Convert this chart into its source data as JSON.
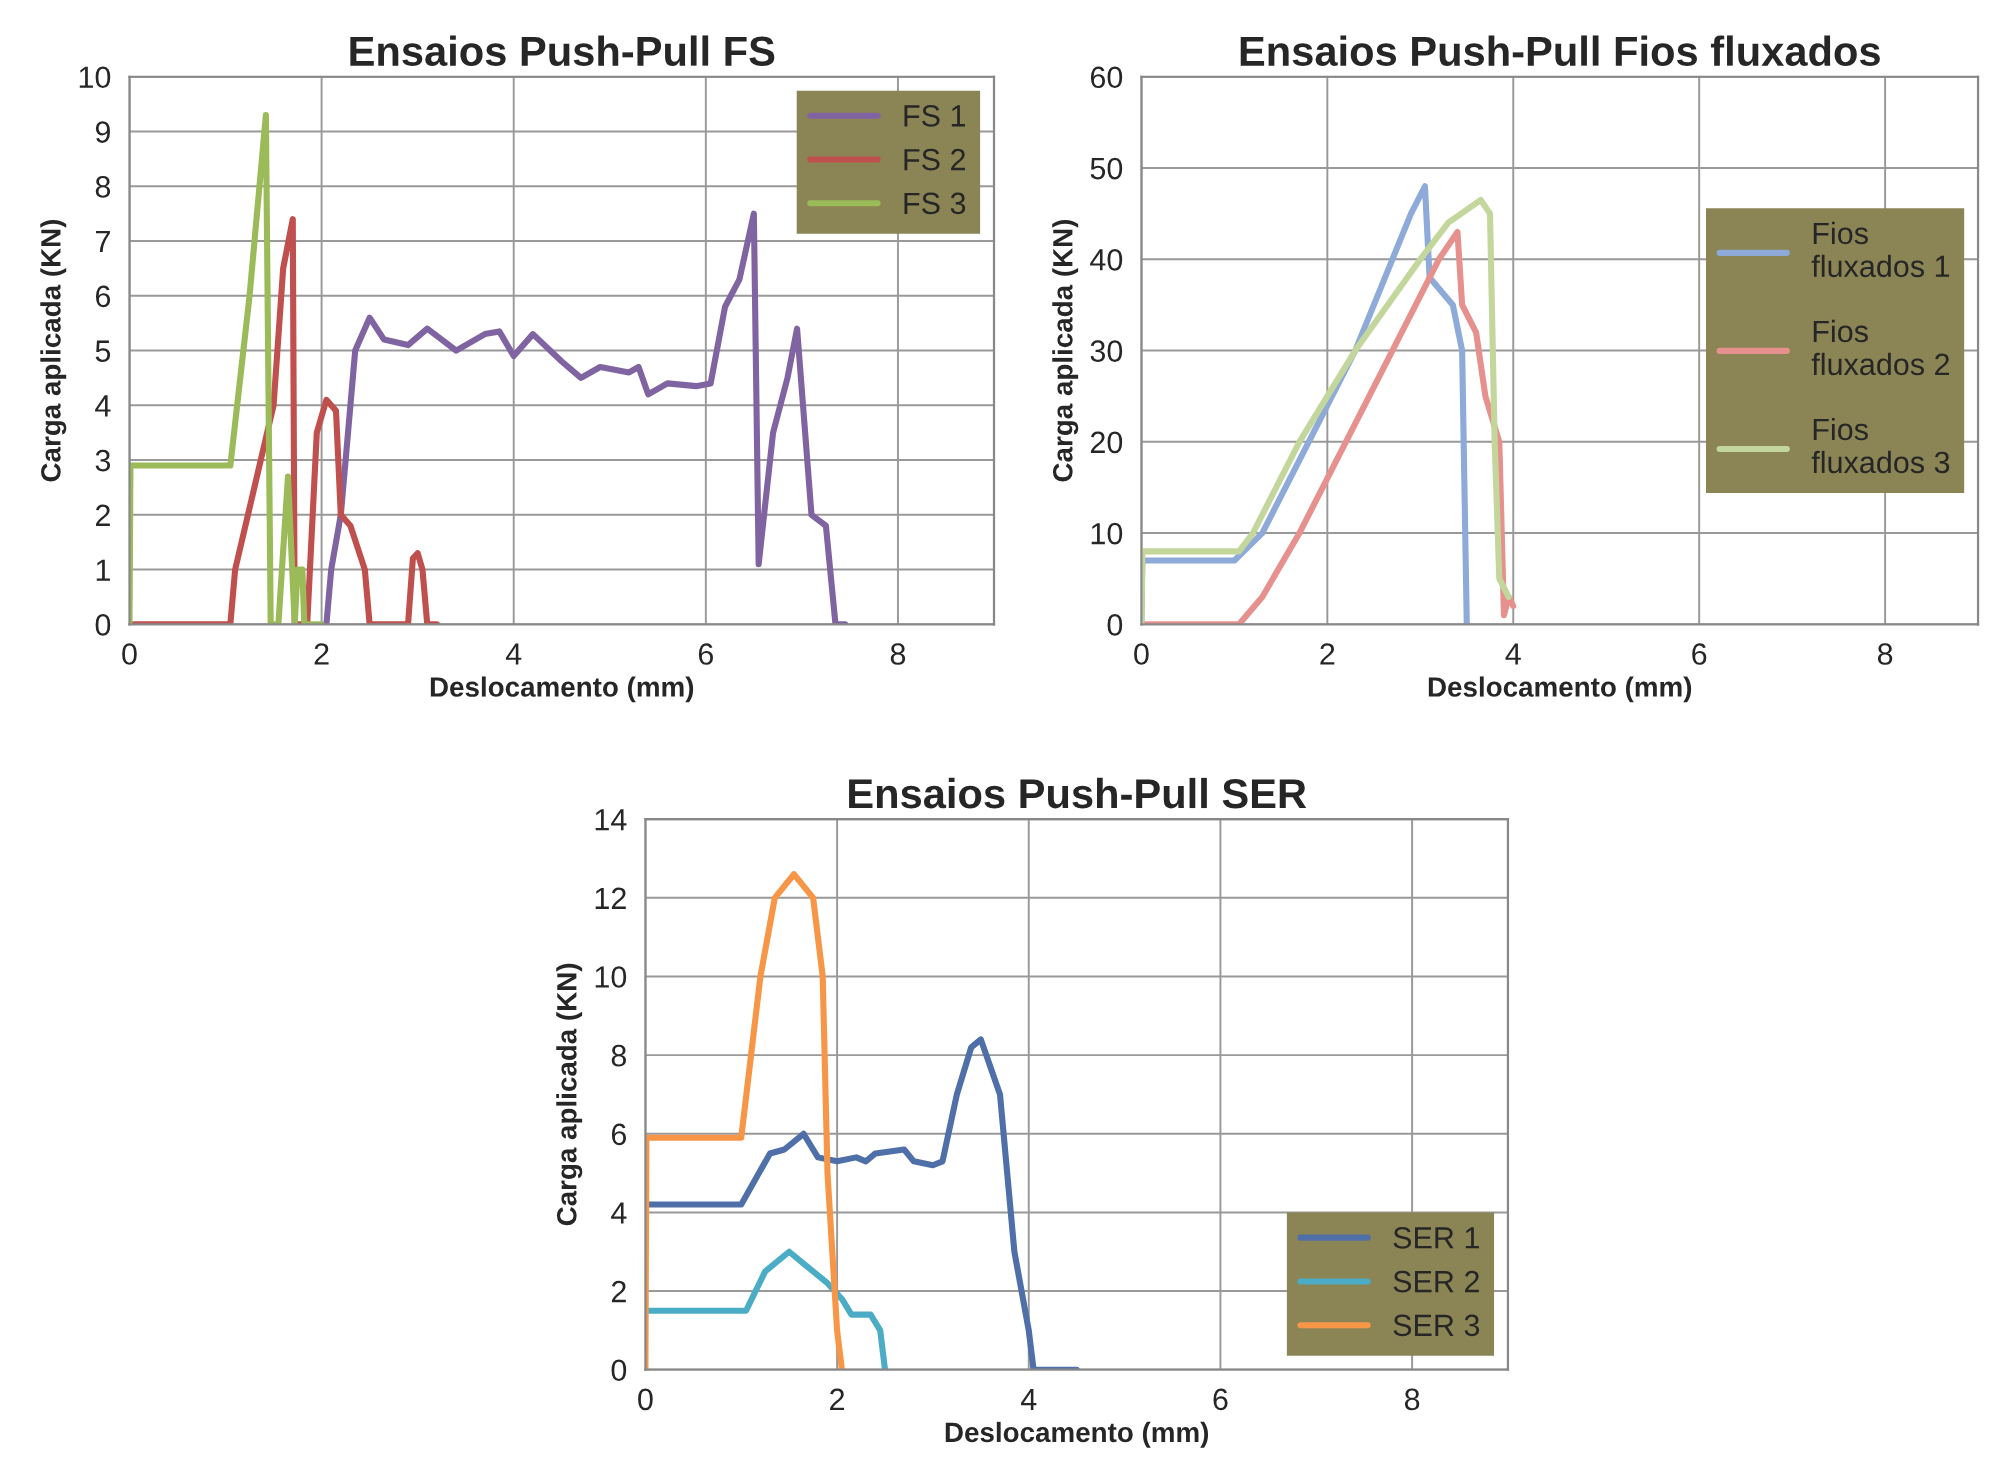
{
  "chart_data": [
    {
      "type": "line",
      "title": "Ensaios Push-Pull FS",
      "xlabel": "Deslocamento (mm)",
      "ylabel": "Carga aplicada (KN)",
      "xlim": [
        0,
        9
      ],
      "xticks": [
        0,
        2,
        4,
        6,
        8
      ],
      "ylim": [
        0,
        10
      ],
      "yticks": [
        0,
        1,
        2,
        3,
        4,
        5,
        6,
        7,
        8,
        9,
        10
      ],
      "grid": true,
      "legend": "top right",
      "line_style": "solid",
      "marker": "none",
      "series": [
        {
          "name": "FS 1",
          "color": "#8064a2",
          "x": [
            2.05,
            2.1,
            2.2,
            2.35,
            2.5,
            2.65,
            2.9,
            3.1,
            3.4,
            3.7,
            3.85,
            4.0,
            4.2,
            4.5,
            4.7,
            4.9,
            5.2,
            5.3,
            5.4,
            5.6,
            5.9,
            6.05,
            6.2,
            6.35,
            6.5,
            6.55,
            6.7,
            6.85,
            6.95,
            7.1,
            7.25,
            7.35,
            7.45
          ],
          "values": [
            0,
            1,
            2,
            5,
            5.6,
            5.2,
            5.1,
            5.4,
            5.0,
            5.3,
            5.35,
            4.9,
            5.3,
            4.8,
            4.5,
            4.7,
            4.6,
            4.7,
            4.2,
            4.4,
            4.35,
            4.4,
            5.8,
            6.3,
            7.5,
            1.1,
            3.5,
            4.5,
            5.4,
            2.0,
            1.8,
            0,
            0
          ]
        },
        {
          "name": "FS 2",
          "color": "#c0504d",
          "x": [
            0,
            1.05,
            1.1,
            1.3,
            1.5,
            1.6,
            1.7,
            1.72,
            1.85,
            1.95,
            2.05,
            2.15,
            2.2,
            2.3,
            2.45,
            2.5,
            2.9,
            2.95,
            3.0,
            3.05,
            3.1,
            3.2
          ],
          "values": [
            0,
            0,
            1,
            2.5,
            4,
            6.5,
            7.4,
            0,
            0,
            3.5,
            4.1,
            3.9,
            2.0,
            1.8,
            1.0,
            0,
            0,
            1.2,
            1.3,
            1.0,
            0,
            0
          ]
        },
        {
          "name": "FS 3",
          "color": "#9bbb59",
          "x": [
            0,
            0.01,
            1.05,
            1.25,
            1.42,
            1.47,
            1.55,
            1.65,
            1.72,
            1.75,
            1.8,
            1.82,
            2.0
          ],
          "values": [
            0,
            2.9,
            2.9,
            6,
            9.3,
            0,
            0,
            2.7,
            0,
            1.0,
            1.0,
            0,
            0
          ]
        }
      ]
    },
    {
      "type": "line",
      "title": "Ensaios Push-Pull Fios fluxados",
      "xlabel": "Deslocamento (mm)",
      "ylabel": "Carga aplicada (KN)",
      "xlim": [
        0,
        9
      ],
      "xticks": [
        0,
        2,
        4,
        6,
        8
      ],
      "ylim": [
        0,
        60
      ],
      "yticks": [
        0,
        10,
        20,
        30,
        40,
        50,
        60
      ],
      "grid": true,
      "legend": "right",
      "line_style": "solid",
      "marker": "none",
      "series": [
        {
          "name": "Fios\nfluxados 1",
          "color": "#8eaad8",
          "x": [
            0,
            0.01,
            1.0,
            1.3,
            1.8,
            2.3,
            2.7,
            2.9,
            3.05,
            3.1,
            3.35,
            3.45,
            3.5
          ],
          "values": [
            0,
            7,
            7,
            10,
            20,
            30,
            40,
            45,
            48,
            38,
            35,
            30,
            0
          ]
        },
        {
          "name": "Fios\nfluxados 2",
          "color": "#e6918e",
          "x": [
            0,
            1.05,
            1.3,
            1.7,
            2.2,
            2.7,
            3.2,
            3.4,
            3.45,
            3.6,
            3.7,
            3.85,
            3.9,
            3.95,
            4.0
          ],
          "values": [
            0,
            0,
            3,
            10,
            20,
            30,
            40,
            43,
            35,
            32,
            25,
            20,
            1,
            3,
            2
          ]
        },
        {
          "name": "Fios\nfluxados 3",
          "color": "#c3d69b",
          "x": [
            0,
            0.01,
            1.05,
            1.2,
            1.7,
            2.3,
            3.0,
            3.3,
            3.65,
            3.75,
            3.8,
            3.85,
            3.95
          ],
          "values": [
            0,
            8,
            8,
            10,
            20,
            30,
            40,
            44,
            46.5,
            45,
            20,
            5,
            3
          ]
        }
      ]
    },
    {
      "type": "line",
      "title": "Ensaios Push-Pull SER",
      "xlabel": "Deslocamento (mm)",
      "ylabel": "Carga aplicada (KN)",
      "xlim": [
        0,
        9
      ],
      "xticks": [
        0,
        2,
        4,
        6,
        8
      ],
      "ylim": [
        0,
        14
      ],
      "yticks": [
        0,
        2,
        4,
        6,
        8,
        10,
        12,
        14
      ],
      "grid": true,
      "legend": "bottom right",
      "line_style": "solid",
      "marker": "none",
      "series": [
        {
          "name": "SER 1",
          "color": "#4f6fa8",
          "x": [
            0,
            1.0,
            1.3,
            1.45,
            1.65,
            1.8,
            2.0,
            2.2,
            2.3,
            2.4,
            2.7,
            2.8,
            3.0,
            3.1,
            3.25,
            3.4,
            3.5,
            3.7,
            3.85,
            4.0,
            4.05,
            4.5
          ],
          "values": [
            4.2,
            4.2,
            5.5,
            5.6,
            6.0,
            5.4,
            5.3,
            5.4,
            5.3,
            5.5,
            5.6,
            5.3,
            5.2,
            5.3,
            7,
            8.2,
            8.4,
            7,
            3,
            1,
            0,
            0
          ]
        },
        {
          "name": "SER 2",
          "color": "#4bacc6",
          "x": [
            0,
            1.0,
            1.05,
            1.25,
            1.5,
            1.65,
            1.9,
            2.05,
            2.15,
            2.35,
            2.45,
            2.5
          ],
          "values": [
            1.5,
            1.5,
            1.5,
            2.5,
            3.0,
            2.7,
            2.2,
            1.8,
            1.4,
            1.4,
            1.0,
            0
          ]
        },
        {
          "name": "SER 3",
          "color": "#f79646",
          "x": [
            0,
            0.01,
            1.0,
            1.2,
            1.35,
            1.55,
            1.75,
            1.85,
            1.9,
            2.0,
            2.05
          ],
          "values": [
            0,
            5.9,
            5.9,
            10,
            12,
            12.6,
            12,
            10,
            5,
            1,
            0
          ]
        }
      ]
    }
  ]
}
